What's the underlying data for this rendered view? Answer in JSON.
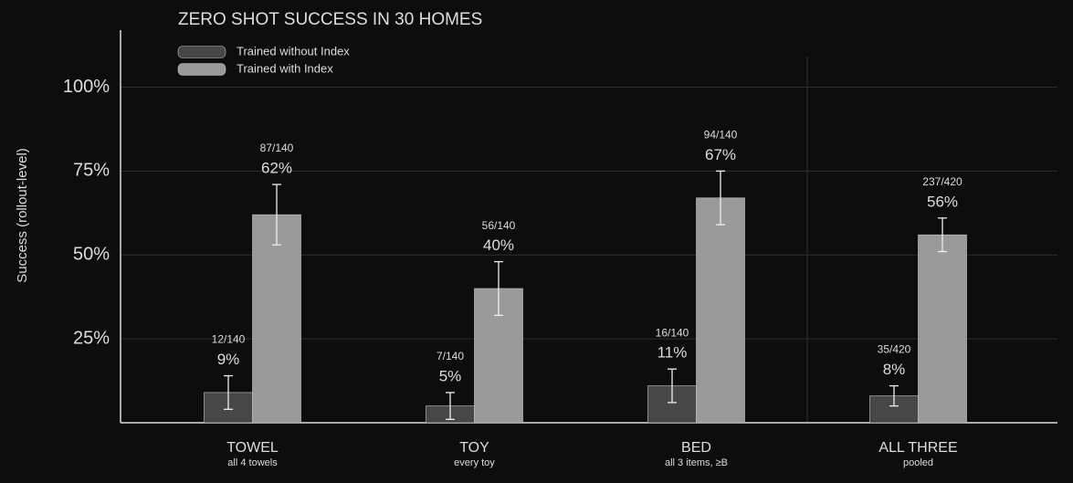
{
  "chart_data": {
    "type": "bar",
    "title": "ZERO SHOT SUCCESS IN 30 HOMES",
    "y_label": "Success (rollout-level)",
    "categories": [
      "TOWEL",
      "TOY",
      "BED",
      "ALL THREE"
    ],
    "category_notes": [
      "all 4 towels",
      "every toy",
      "all 3 items, ≥B",
      "pooled"
    ],
    "series": [
      {
        "name": "Trained without Index",
        "color": "#474747",
        "values": [
          9,
          5,
          11,
          8
        ],
        "value_labels": [
          "9%",
          "5%",
          "11%",
          "8%"
        ],
        "errors": [
          5,
          4,
          5,
          3
        ],
        "count_labels": [
          "12/140",
          "7/140",
          "16/140",
          "35/420"
        ]
      },
      {
        "name": "Trained with Index",
        "color": "#9a9a9a",
        "values": [
          62,
          40,
          67,
          56
        ],
        "value_labels": [
          "62%",
          "40%",
          "67%",
          "56%"
        ],
        "errors": [
          9,
          8,
          8,
          5
        ],
        "count_labels": [
          "87/140",
          "56/140",
          "94/140",
          "237/420"
        ]
      }
    ],
    "ylim": [
      0,
      117
    ],
    "yticks": [
      {
        "value": 25,
        "label": "25%"
      },
      {
        "value": 50,
        "label": "50%"
      },
      {
        "value": 75,
        "label": "75%"
      },
      {
        "value": 100,
        "label": "100%"
      }
    ],
    "grid": true,
    "legend": "top-left"
  }
}
